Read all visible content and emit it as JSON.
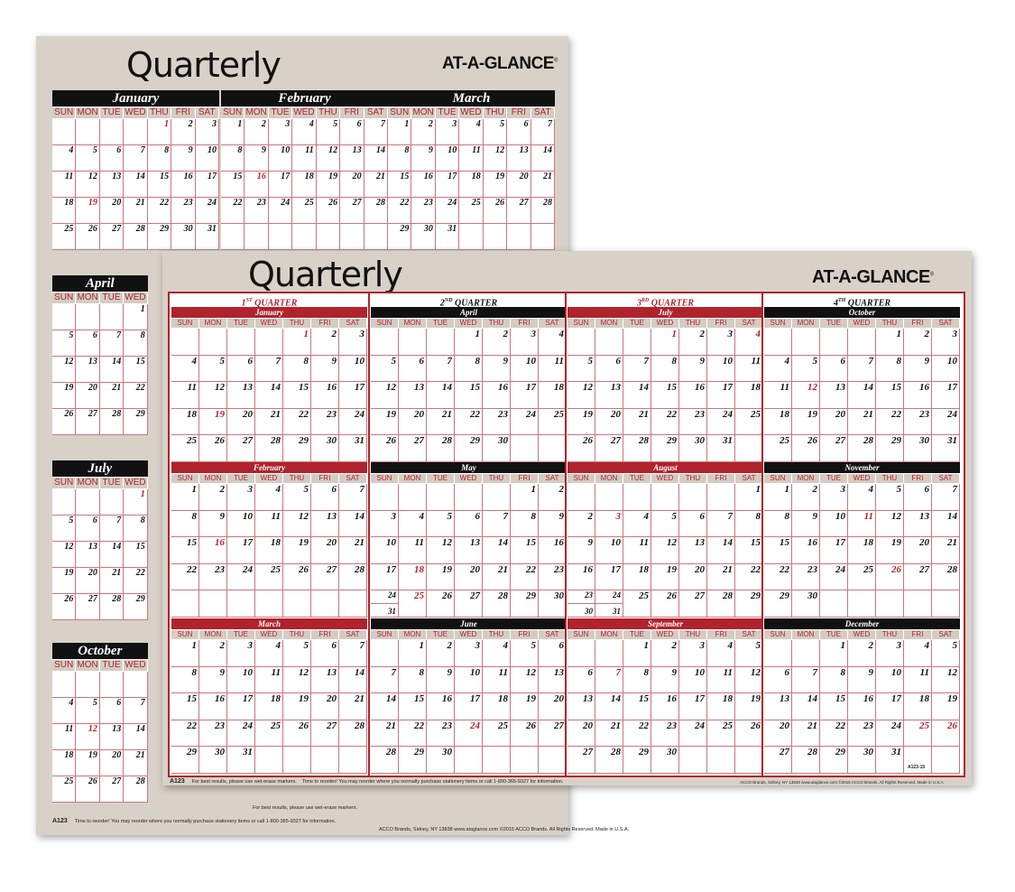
{
  "day_names": [
    "SUN",
    "MON",
    "TUE",
    "WED",
    "THU",
    "FRI",
    "SAT"
  ],
  "months": [
    {
      "name": "January",
      "start": 4,
      "days": 31,
      "holidays": [
        1,
        19
      ]
    },
    {
      "name": "February",
      "start": 0,
      "days": 28,
      "holidays": [
        16
      ]
    },
    {
      "name": "March",
      "start": 0,
      "days": 31,
      "holidays": []
    },
    {
      "name": "April",
      "start": 3,
      "days": 30,
      "holidays": []
    },
    {
      "name": "May",
      "start": 5,
      "days": 31,
      "holidays": [
        18,
        25
      ]
    },
    {
      "name": "June",
      "start": 1,
      "days": 30,
      "holidays": [
        24
      ]
    },
    {
      "name": "July",
      "start": 3,
      "days": 31,
      "holidays": [
        1,
        4
      ]
    },
    {
      "name": "August",
      "start": 6,
      "days": 31,
      "holidays": [
        3
      ]
    },
    {
      "name": "September",
      "start": 2,
      "days": 30,
      "holidays": [
        7
      ]
    },
    {
      "name": "October",
      "start": 4,
      "days": 31,
      "holidays": [
        12
      ]
    },
    {
      "name": "November",
      "start": 0,
      "days": 30,
      "holidays": [
        11,
        26
      ]
    },
    {
      "name": "December",
      "start": 2,
      "days": 31,
      "holidays": [
        25,
        26
      ]
    }
  ],
  "colors": {
    "red": "#b0222c",
    "black": "#111111",
    "paper": "#d8d1c8"
  },
  "back": {
    "title": "Quarterly",
    "brand": "AT-A-GLANCE",
    "brand_mark": "®",
    "footer_code": "A123",
    "footer_text": "Time to reorder! You may reorder where you normally purchase stationery items or call 1-800-365-9327 for information.",
    "footer_note": "For best results, please use wet-erase markers.",
    "footer_right": "ACCO Brands, Sidney, NY 13838  www.ataglance.com  ©2015 ACCO Brands. All Rights Reserved. Made in U.S.A."
  },
  "front": {
    "title": "Quarterly",
    "brand": "AT-A-GLANCE",
    "brand_mark": "®",
    "quarters": [
      {
        "num": "1",
        "sup": "ST",
        "label": "QUARTER",
        "color": "red"
      },
      {
        "num": "2",
        "sup": "ND",
        "label": "QUARTER",
        "color": "black"
      },
      {
        "num": "3",
        "sup": "RD",
        "label": "QUARTER",
        "color": "red"
      },
      {
        "num": "4",
        "sup": "TH",
        "label": "QUARTER",
        "color": "black"
      }
    ],
    "footer_code": "A123",
    "footer_note": "For best results, please use wet-erase markers.",
    "footer_text": "Time to reorder! You may reorder where you normally purchase stationery items or call 1-800-365-9327 for information.",
    "footer_right": "ACCO Brands, Sidney, NY 13838  www.ataglance.com  ©2015 ACCO Brands. All Rights Reserved. Made in U.S.A.",
    "product_code": "A123-15"
  }
}
